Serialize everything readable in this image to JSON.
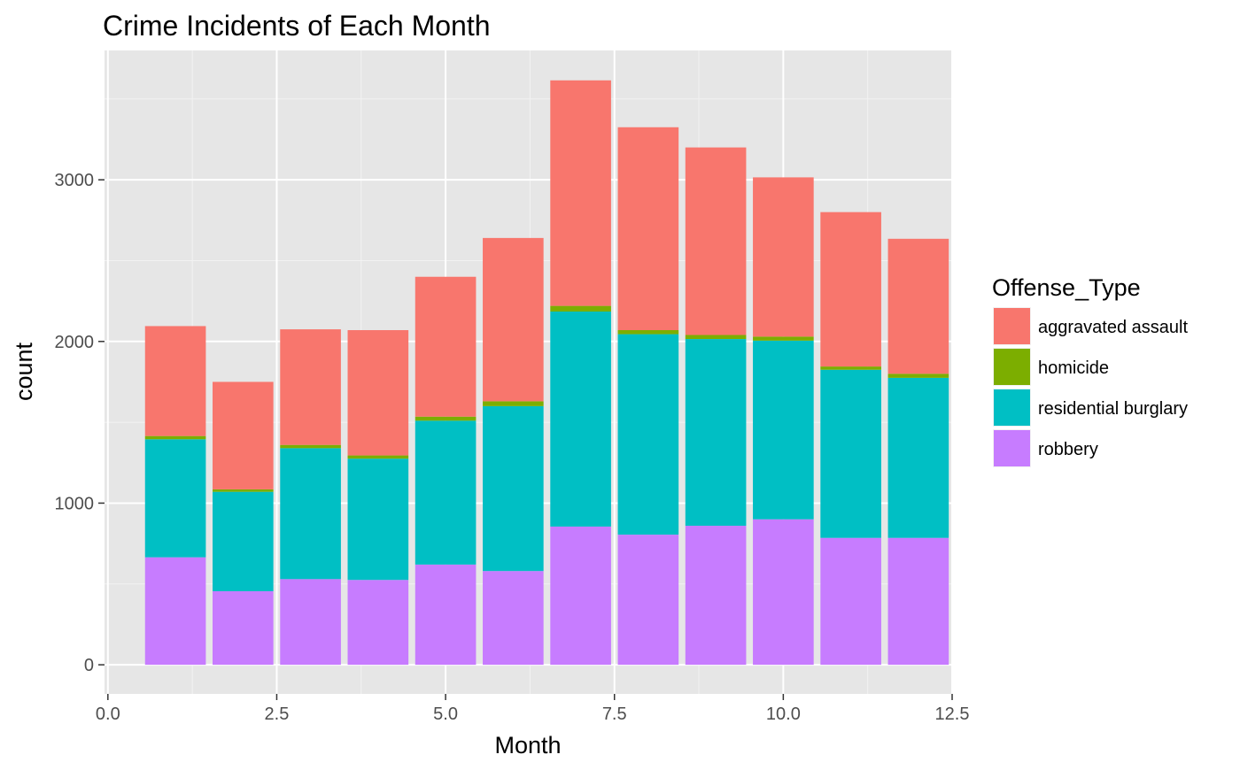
{
  "chart_data": {
    "type": "bar",
    "stacked": true,
    "title": "Crime Incidents of Each Month",
    "xlabel": "Month",
    "ylabel": "count",
    "xlim": [
      -0.05,
      12.5
    ],
    "ylim": [
      -180,
      3800
    ],
    "x_ticks": [
      0.0,
      2.5,
      5.0,
      7.5,
      10.0,
      12.5
    ],
    "x_tick_labels": [
      "0.0",
      "2.5",
      "5.0",
      "7.5",
      "10.0",
      "12.5"
    ],
    "x_minor_ticks": [
      1.25,
      3.75,
      6.25,
      8.75,
      11.25
    ],
    "y_ticks": [
      0,
      1000,
      2000,
      3000
    ],
    "y_tick_labels": [
      "0",
      "1000",
      "2000",
      "3000"
    ],
    "y_minor_ticks": [
      500,
      1500,
      2500,
      3500
    ],
    "bar_width": 0.9,
    "grid": true,
    "panel_background": "#e6e6e6",
    "legend": {
      "title": "Offense_Type",
      "position": "right"
    },
    "x": [
      1,
      2,
      3,
      4,
      5,
      6,
      7,
      8,
      9,
      10,
      11,
      12
    ],
    "stack_order": [
      "robbery",
      "residential burglary",
      "homicide",
      "aggravated assault"
    ],
    "series": [
      {
        "name": "aggravated assault",
        "color": "#F8766D",
        "values": [
          680,
          665,
          715,
          775,
          865,
          1010,
          1395,
          1255,
          1160,
          985,
          955,
          835
        ]
      },
      {
        "name": "homicide",
        "color": "#7CAE00",
        "values": [
          20,
          15,
          20,
          20,
          25,
          30,
          35,
          25,
          25,
          25,
          20,
          25
        ]
      },
      {
        "name": "residential burglary",
        "color": "#00BFC4",
        "values": [
          730,
          615,
          810,
          750,
          890,
          1020,
          1330,
          1240,
          1155,
          1105,
          1040,
          990
        ]
      },
      {
        "name": "robbery",
        "color": "#C77CFF",
        "values": [
          665,
          455,
          530,
          525,
          620,
          580,
          855,
          805,
          860,
          900,
          785,
          785
        ]
      }
    ]
  }
}
